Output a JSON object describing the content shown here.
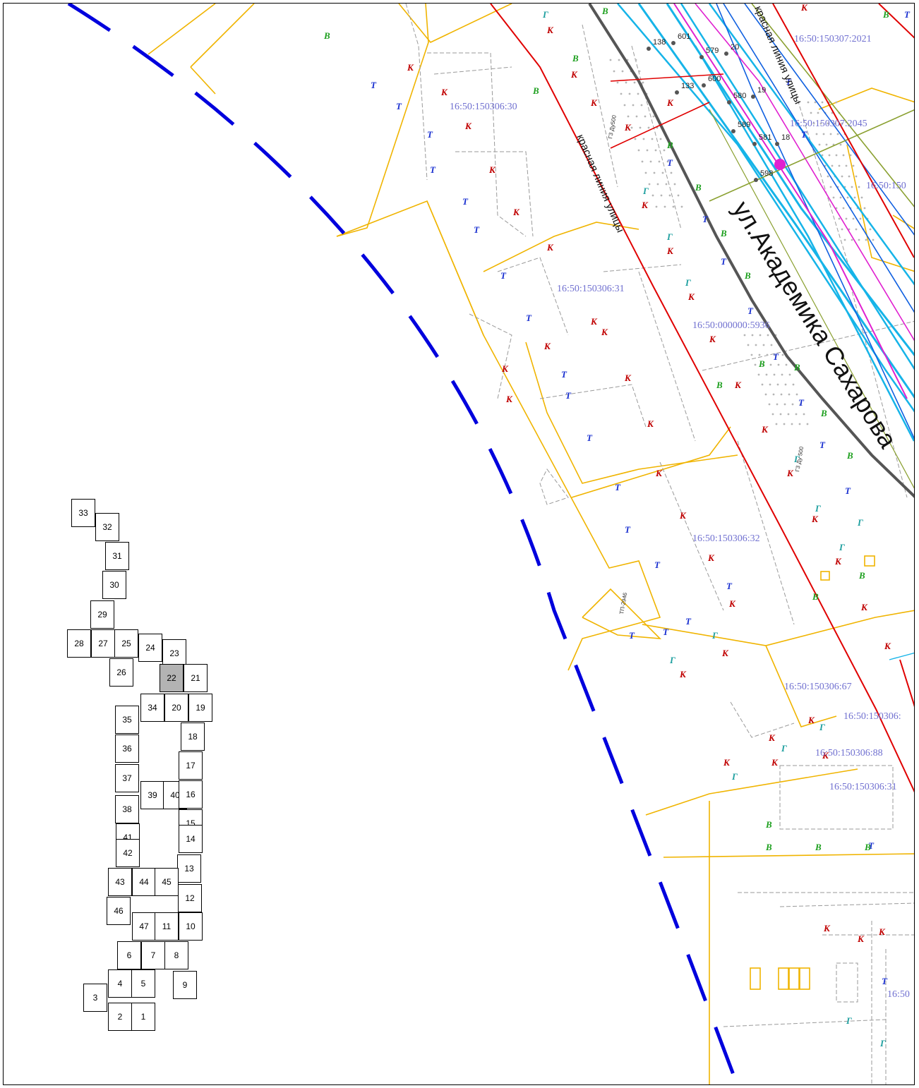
{
  "colors": {
    "background": "#ffffff",
    "boundary_line": "#0000dd",
    "red_line": "#e00000",
    "parcel": "#f0b400",
    "street": "#555555",
    "utility_cyan": "#16b4e8",
    "utility_blue": "#1060e0",
    "utility_magenta": "#e020d0",
    "utility_olive": "#8aa030",
    "label_cadastral": "#7070d0",
    "active_tile": "#b3b3b3"
  },
  "street": {
    "name": "ул.Академика Сахарова",
    "red_line_label": "красная линия улицы"
  },
  "cadastral_labels": [
    "16:50:150306:30",
    "16:50:150306:31",
    "16:50:000000:5936",
    "16:50:150306:32",
    "16:50:150306:67",
    "16:50:150306:88",
    "16:50:150306:31",
    "16:50:150307:2021",
    "16:50:150307:2045",
    "16:50:150",
    "16:50:150306:",
    "16:50"
  ],
  "point_labels": [
    "138",
    "601",
    "579",
    "20",
    "19",
    "600",
    "580",
    "589",
    "581",
    "18",
    "598",
    "133"
  ],
  "utility_letters": [
    "К",
    "Т",
    "В",
    "Г"
  ],
  "pipe_labels": [
    "Г3 Ду500",
    "Г3 Ду 500",
    "ТП-2946"
  ],
  "sheet_index": {
    "active": "22",
    "tiles": [
      "33",
      "32",
      "31",
      "30",
      "29",
      "28",
      "27",
      "25",
      "24",
      "23",
      "26",
      "22",
      "21",
      "34",
      "20",
      "19",
      "35",
      "18",
      "36",
      "17",
      "37",
      "39",
      "40",
      "16",
      "38",
      "15",
      "41",
      "14",
      "42",
      "13",
      "43",
      "44",
      "45",
      "12",
      "46",
      "47",
      "11",
      "10",
      "6",
      "7",
      "8",
      "4",
      "5",
      "9",
      "3",
      "2",
      "1"
    ]
  }
}
